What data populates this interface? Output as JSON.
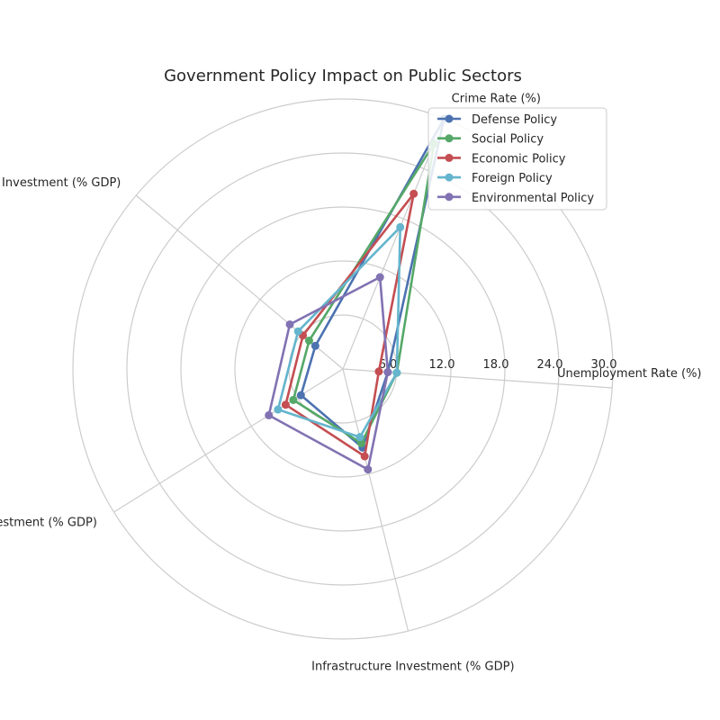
{
  "chart_data": {
    "type": "radar",
    "title": "Government Policy Impact on Public Sectors",
    "axes": [
      "Unemployment Rate (%)",
      "Crime Rate (%)",
      "Education Investment (% GDP)",
      "Healthcare Investment (% GDP)",
      "Infrastructure Investment (% GDP)"
    ],
    "rlim": [
      0,
      30
    ],
    "rticks": [
      6,
      12,
      18,
      24,
      30
    ],
    "rtick_labels": [
      "6.0",
      "12.0",
      "18.0",
      "24.0",
      "30.0"
    ],
    "grid": true,
    "legend_position": "top-right",
    "series": [
      {
        "name": "Defense Policy",
        "color": "#4c72b0",
        "values": [
          5.0,
          30.0,
          4.0,
          5.5,
          9.0
        ]
      },
      {
        "name": "Social Policy",
        "color": "#55a868",
        "values": [
          6.0,
          27.0,
          4.9,
          6.5,
          8.5
        ]
      },
      {
        "name": "Economic Policy",
        "color": "#c44e52",
        "values": [
          4.0,
          21.0,
          5.8,
          7.5,
          10.0
        ]
      },
      {
        "name": "Foreign Policy",
        "color": "#64b5cd",
        "values": [
          6.0,
          17.0,
          6.5,
          8.5,
          7.8
        ]
      },
      {
        "name": "Environmental Policy",
        "color": "#8172b2",
        "values": [
          5.0,
          11.0,
          7.7,
          9.7,
          11.5
        ]
      }
    ]
  }
}
